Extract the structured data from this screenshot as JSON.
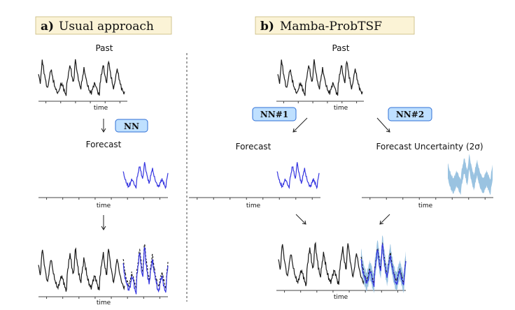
{
  "panel_a": {
    "title_letter": "a)",
    "title_text": "Usual approach",
    "past_label": "Past",
    "nn_label": "NN",
    "forecast_label": "Forecast",
    "time_label": "time"
  },
  "panel_b": {
    "title_letter": "b)",
    "title_text": "Mamba-ProbTSF",
    "past_label": "Past",
    "nn1_label": "NN#1",
    "nn2_label": "NN#2",
    "forecast_label": "Forecast",
    "uncertainty_label": "Forecast Uncertainty (2σ)",
    "time_label": "time"
  },
  "colors": {
    "title_bg": "#fbf3d6",
    "nn_box_bg": "#bfe0ff",
    "nn_box_border": "#2f6fd6",
    "past_line": "#1a1a1a",
    "forecast_line": "#3535e0",
    "uncertainty_fill": "#88b8dc"
  }
}
